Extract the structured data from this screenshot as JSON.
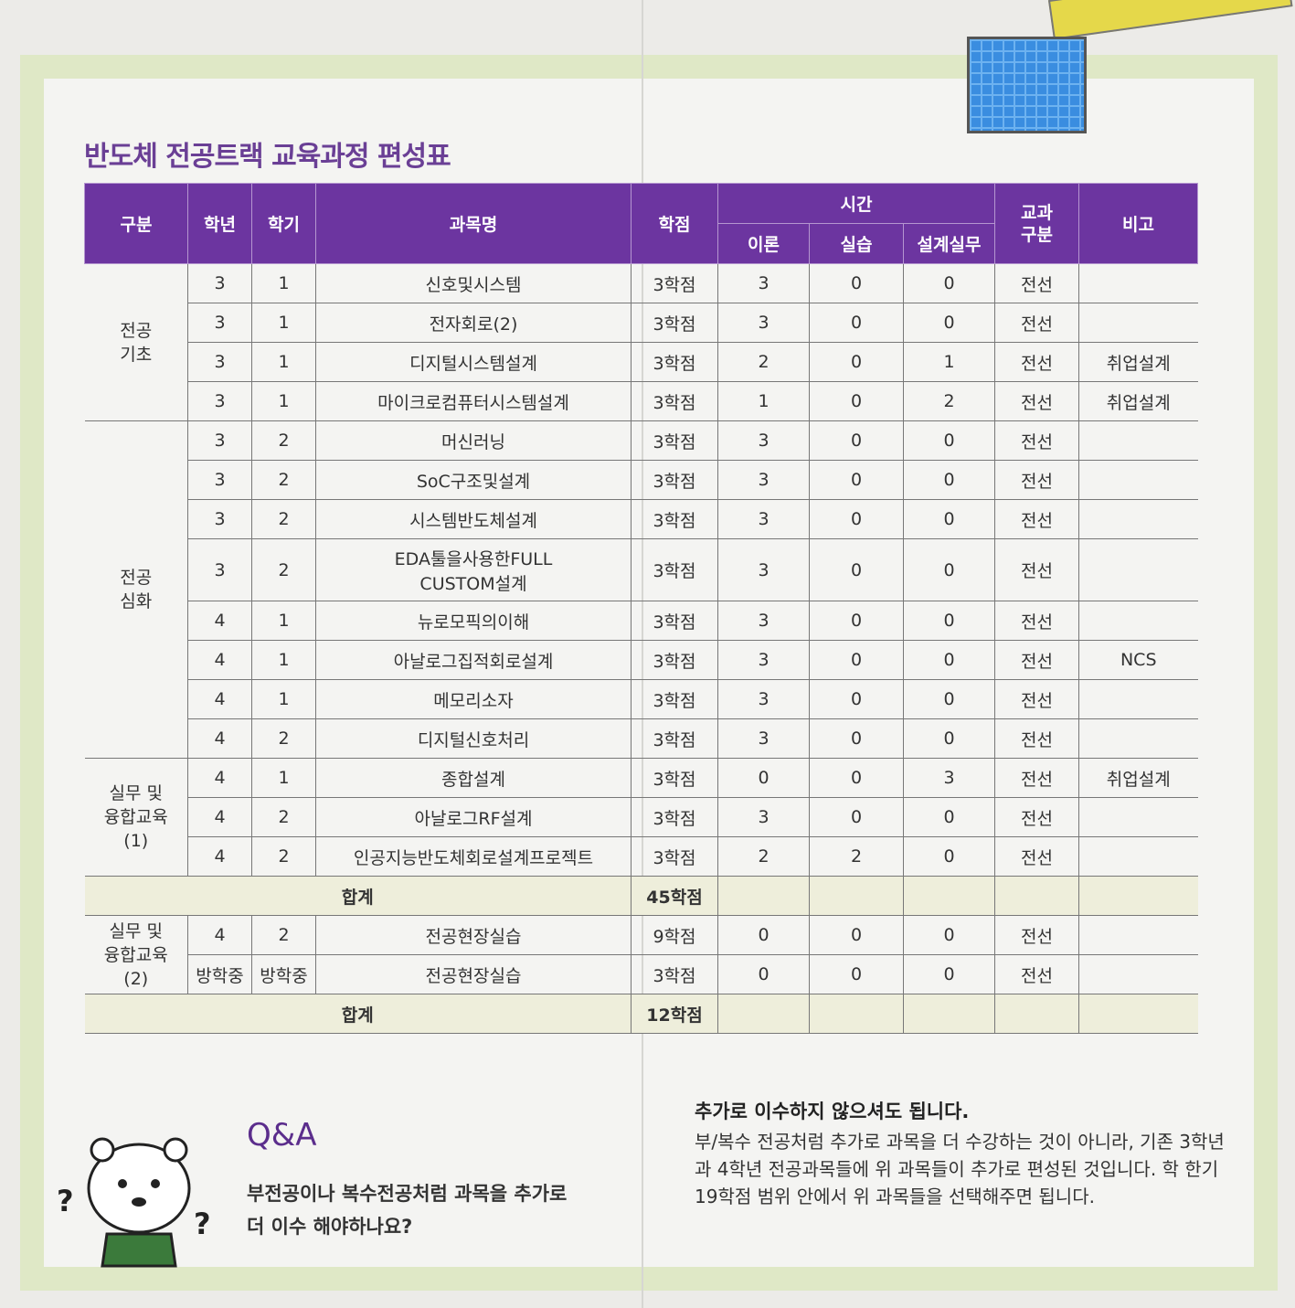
{
  "title": "반도체 전공트랙 교육과정 편성표",
  "headers": {
    "category": "구분",
    "year": "학년",
    "semester": "학기",
    "course": "과목명",
    "credits": "학점",
    "hours": "시간",
    "theory": "이론",
    "practice": "실습",
    "design": "설계실무",
    "type": "교과\n구분",
    "note": "비고"
  },
  "groups": [
    {
      "label": "전공\n기초",
      "rows": [
        [
          "3",
          "1",
          "신호및시스템",
          "3학점",
          "3",
          "0",
          "0",
          "전선",
          ""
        ],
        [
          "3",
          "1",
          "전자회로(2)",
          "3학점",
          "3",
          "0",
          "0",
          "전선",
          ""
        ],
        [
          "3",
          "1",
          "디지털시스템설계",
          "3학점",
          "2",
          "0",
          "1",
          "전선",
          "취업설계"
        ],
        [
          "3",
          "1",
          "마이크로컴퓨터시스템설계",
          "3학점",
          "1",
          "0",
          "2",
          "전선",
          "취업설계"
        ]
      ]
    },
    {
      "label": "전공\n심화",
      "rows": [
        [
          "3",
          "2",
          "머신러닝",
          "3학점",
          "3",
          "0",
          "0",
          "전선",
          ""
        ],
        [
          "3",
          "2",
          "SoC구조및설계",
          "3학점",
          "3",
          "0",
          "0",
          "전선",
          ""
        ],
        [
          "3",
          "2",
          "시스템반도체설계",
          "3학점",
          "3",
          "0",
          "0",
          "전선",
          ""
        ],
        [
          "3",
          "2",
          "EDA툴을사용한FULL\nCUSTOM설계",
          "3학점",
          "3",
          "0",
          "0",
          "전선",
          ""
        ],
        [
          "4",
          "1",
          "뉴로모픽의이해",
          "3학점",
          "3",
          "0",
          "0",
          "전선",
          ""
        ],
        [
          "4",
          "1",
          "아날로그집적회로설계",
          "3학점",
          "3",
          "0",
          "0",
          "전선",
          "NCS"
        ],
        [
          "4",
          "1",
          "메모리소자",
          "3학점",
          "3",
          "0",
          "0",
          "전선",
          ""
        ],
        [
          "4",
          "2",
          "디지털신호처리",
          "3학점",
          "3",
          "0",
          "0",
          "전선",
          ""
        ]
      ]
    },
    {
      "label": "실무 및\n융합교육\n(1)",
      "rows": [
        [
          "4",
          "1",
          "종합설계",
          "3학점",
          "0",
          "0",
          "3",
          "전선",
          "취업설계"
        ],
        [
          "4",
          "2",
          "아날로그RF설계",
          "3학점",
          "3",
          "0",
          "0",
          "전선",
          ""
        ],
        [
          "4",
          "2",
          "인공지능반도체회로설계프로젝트",
          "3학점",
          "2",
          "2",
          "0",
          "전선",
          ""
        ]
      ],
      "total": {
        "label": "합계",
        "credits": "45학점"
      }
    },
    {
      "label": "실무 및\n융합교육\n(2)",
      "rows": [
        [
          "4",
          "2",
          "전공현장실습",
          "9학점",
          "0",
          "0",
          "0",
          "전선",
          ""
        ],
        [
          "방학중",
          "방학중",
          "전공현장실습",
          "3학점",
          "0",
          "0",
          "0",
          "전선",
          ""
        ]
      ],
      "total": {
        "label": "합계",
        "credits": "12학점"
      }
    }
  ],
  "qa": {
    "title": "Q&A",
    "question": "부전공이나 복수전공처럼 과목을 추가로\n더 이수 해야하나요?",
    "answer_heading": "추가로 이수하지 않으셔도 됩니다.",
    "answer": "부/복수 전공처럼 추가로 과목을 더 수강하는 것이 아니라, 기존 3학년과 4학년 전공과목들에 위 과목들이 추가로 편성된 것입니다. 학 한기 19학점 범위 안에서 위 과목들을 선택해주면 됩니다."
  },
  "colors": {
    "header": "#6c35a0",
    "total_row": "#eeeedb",
    "frame": "#dfe8c6"
  }
}
